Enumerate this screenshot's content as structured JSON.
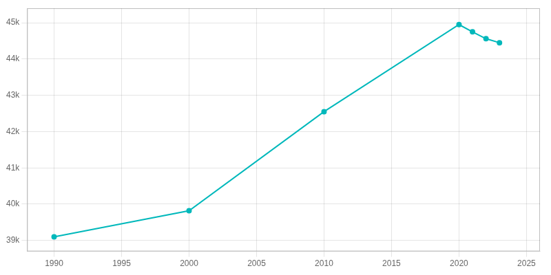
{
  "chart_data": {
    "type": "line",
    "x": [
      1990,
      2000,
      2010,
      2020,
      2021,
      2022,
      2023
    ],
    "values": [
      39100,
      39820,
      42550,
      44950,
      44750,
      44560,
      44450
    ],
    "color": "#00b8bb",
    "marker": "circle",
    "xlim": [
      1988,
      2026
    ],
    "xticks": [
      1990,
      1995,
      2000,
      2005,
      2010,
      2015,
      2020,
      2025
    ],
    "ylim": [
      38700,
      45400
    ],
    "yticks": [
      {
        "value": 39000,
        "label": "39k"
      },
      {
        "value": 40000,
        "label": "40k"
      },
      {
        "value": 41000,
        "label": "41k"
      },
      {
        "value": 42000,
        "label": "42k"
      },
      {
        "value": 43000,
        "label": "43k"
      },
      {
        "value": 44000,
        "label": "44k"
      },
      {
        "value": 45000,
        "label": "45k"
      }
    ],
    "grid": true
  }
}
